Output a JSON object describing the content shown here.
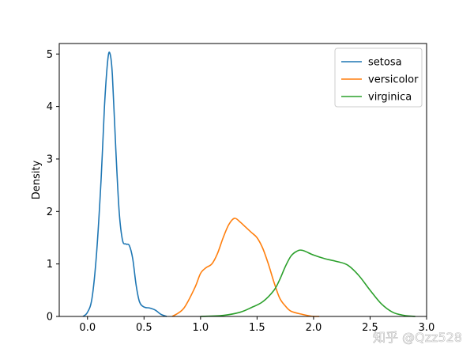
{
  "chart_data": {
    "type": "line",
    "title": "",
    "xlabel": "",
    "ylabel": "Density",
    "xlim": [
      -0.25,
      3.0
    ],
    "ylim": [
      0,
      5.2
    ],
    "xticks": [
      0.0,
      0.5,
      1.0,
      1.5,
      2.0,
      2.5,
      3.0
    ],
    "xtick_labels": [
      "0.0",
      "0.5",
      "1.0",
      "1.5",
      "2.0",
      "2.5",
      "3.0"
    ],
    "yticks": [
      0,
      1,
      2,
      3,
      4,
      5
    ],
    "ytick_labels": [
      "0",
      "1",
      "2",
      "3",
      "4",
      "5"
    ],
    "grid": false,
    "legend_position": "top-right",
    "series": [
      {
        "name": "setosa",
        "color": "#1f77b4",
        "x": [
          -0.04,
          0.0,
          0.04,
          0.08,
          0.12,
          0.15,
          0.18,
          0.2,
          0.22,
          0.25,
          0.28,
          0.31,
          0.34,
          0.37,
          0.4,
          0.43,
          0.46,
          0.5,
          0.55,
          0.6,
          0.65,
          0.7
        ],
        "y": [
          0.0,
          0.08,
          0.35,
          1.2,
          2.6,
          4.0,
          4.9,
          5.0,
          4.6,
          3.2,
          2.0,
          1.45,
          1.38,
          1.35,
          1.1,
          0.6,
          0.28,
          0.18,
          0.16,
          0.12,
          0.04,
          0.0
        ]
      },
      {
        "name": "versicolor",
        "color": "#ff7f0e",
        "x": [
          0.75,
          0.85,
          0.95,
          1.0,
          1.05,
          1.1,
          1.15,
          1.2,
          1.25,
          1.3,
          1.35,
          1.4,
          1.45,
          1.5,
          1.55,
          1.6,
          1.65,
          1.7,
          1.75,
          1.8,
          1.9,
          2.0,
          2.05
        ],
        "y": [
          0.0,
          0.15,
          0.55,
          0.82,
          0.93,
          1.0,
          1.2,
          1.5,
          1.75,
          1.87,
          1.8,
          1.7,
          1.6,
          1.5,
          1.3,
          1.0,
          0.65,
          0.35,
          0.2,
          0.1,
          0.04,
          0.0,
          0.0
        ]
      },
      {
        "name": "virginica",
        "color": "#2ca02c",
        "x": [
          1.0,
          1.2,
          1.35,
          1.45,
          1.55,
          1.65,
          1.7,
          1.75,
          1.8,
          1.85,
          1.9,
          2.0,
          2.1,
          2.2,
          2.3,
          2.4,
          2.5,
          2.6,
          2.7,
          2.8,
          2.9
        ],
        "y": [
          0.0,
          0.02,
          0.08,
          0.17,
          0.28,
          0.5,
          0.7,
          0.95,
          1.15,
          1.24,
          1.26,
          1.17,
          1.1,
          1.05,
          0.98,
          0.78,
          0.5,
          0.24,
          0.08,
          0.02,
          0.0
        ]
      }
    ]
  },
  "watermark": "知乎 @Qzz528"
}
